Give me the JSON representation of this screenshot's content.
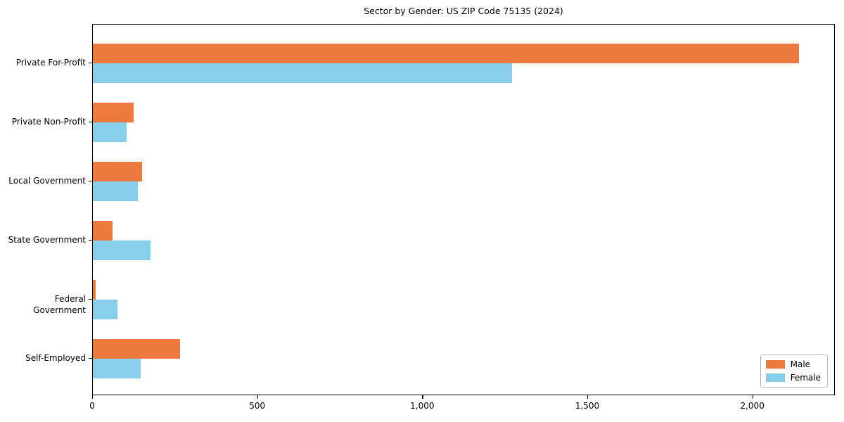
{
  "chart_data": {
    "type": "bar",
    "orientation": "horizontal",
    "title": "Sector by Gender: US ZIP Code 75135 (2024)",
    "categories": [
      "Private For-Profit",
      "Private Non-Profit",
      "Local Government",
      "State Government",
      "Federal Government",
      "Self-Employed"
    ],
    "series": [
      {
        "name": "Male",
        "color": "#ec7a3c",
        "values": [
          2140,
          124,
          150,
          60,
          8,
          265
        ]
      },
      {
        "name": "Female",
        "color": "#87ceeb",
        "values": [
          1270,
          103,
          137,
          175,
          75,
          145
        ]
      }
    ],
    "xlabel": "",
    "ylabel": "",
    "xlim": [
      0,
      2250
    ],
    "xticks": {
      "values": [
        0,
        500,
        1000,
        1500,
        2000
      ],
      "labels": [
        "0",
        "500",
        "1,000",
        "1,500",
        "2,000"
      ]
    },
    "legend": {
      "position": "lower right",
      "entries": [
        "Male",
        "Female"
      ]
    },
    "grid": false
  }
}
